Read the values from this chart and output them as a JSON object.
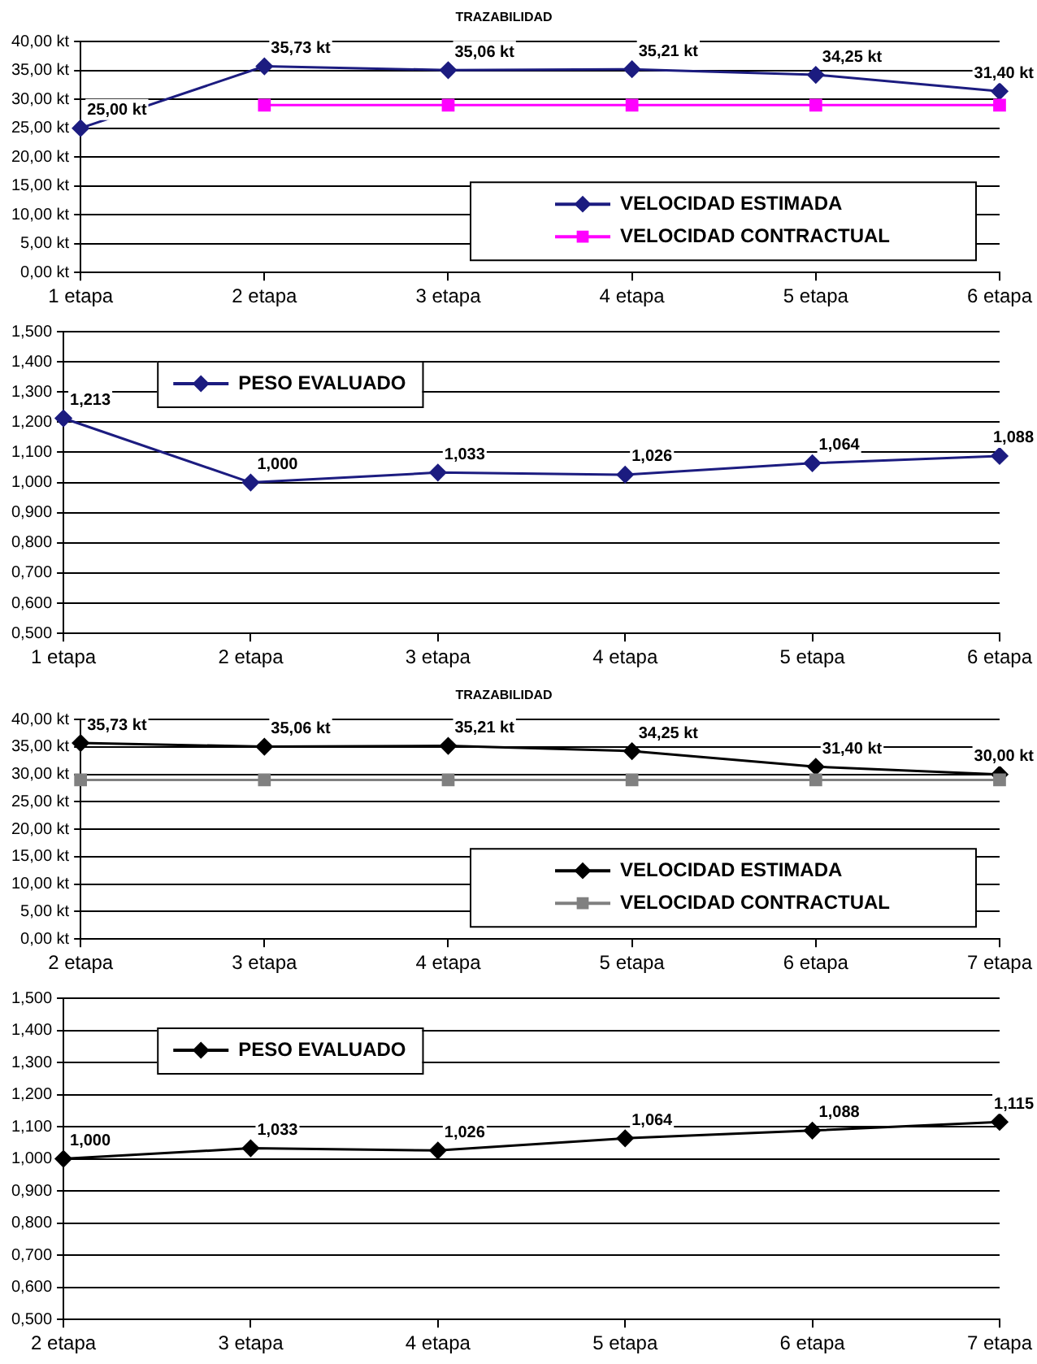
{
  "chart_data": [
    {
      "type": "line",
      "title": "TRAZABILIDAD",
      "categories": [
        "1 etapa",
        "2 etapa",
        "3 etapa",
        "4 etapa",
        "5 etapa",
        "6 etapa"
      ],
      "ylim": [
        0,
        40
      ],
      "yticks": [
        {
          "value": 0,
          "label": "0,00 kt"
        },
        {
          "value": 5,
          "label": "5,00 kt"
        },
        {
          "value": 10,
          "label": "10,00 kt"
        },
        {
          "value": 15,
          "label": "15,00 kt"
        },
        {
          "value": 20,
          "label": "20,00 kt"
        },
        {
          "value": 25,
          "label": "25,00 kt"
        },
        {
          "value": 30,
          "label": "30,00 kt"
        },
        {
          "value": 35,
          "label": "35,00 kt"
        },
        {
          "value": 40,
          "label": "40,00 kt"
        }
      ],
      "grid": "y",
      "legend": "bottom right",
      "series": [
        {
          "name": "VELOCIDAD ESTIMADA",
          "color": "#1c1c80",
          "marker": "diamond",
          "values": [
            25.0,
            35.73,
            35.06,
            35.21,
            34.25,
            31.4
          ],
          "value_labels": [
            "25,00 kt",
            "35,73 kt",
            "35,06 kt",
            "35,21 kt",
            "34,25 kt",
            "31,40 kt"
          ]
        },
        {
          "name": "VELOCIDAD CONTRACTUAL",
          "color": "#ff00ff",
          "marker": "square",
          "values": [
            null,
            29,
            29,
            29,
            29,
            29
          ]
        }
      ]
    },
    {
      "type": "line",
      "categories": [
        "1 etapa",
        "2 etapa",
        "3 etapa",
        "4 etapa",
        "5 etapa",
        "6 etapa"
      ],
      "ylim": [
        0.5,
        1.5
      ],
      "yticks": [
        {
          "value": 0.5,
          "label": "0,500"
        },
        {
          "value": 0.6,
          "label": "0,600"
        },
        {
          "value": 0.7,
          "label": "0,700"
        },
        {
          "value": 0.8,
          "label": "0,800"
        },
        {
          "value": 0.9,
          "label": "0,900"
        },
        {
          "value": 1.0,
          "label": "1,000"
        },
        {
          "value": 1.1,
          "label": "1,100"
        },
        {
          "value": 1.2,
          "label": "1,200"
        },
        {
          "value": 1.3,
          "label": "1,300"
        },
        {
          "value": 1.4,
          "label": "1,400"
        },
        {
          "value": 1.5,
          "label": "1,500"
        }
      ],
      "grid": "y",
      "legend": "top left",
      "series": [
        {
          "name": "PESO EVALUADO",
          "color": "#1c1c80",
          "marker": "diamond",
          "values": [
            1.213,
            1.0,
            1.033,
            1.026,
            1.064,
            1.088
          ],
          "value_labels": [
            "1,213",
            "1,000",
            "1,033",
            "1,026",
            "1,064",
            "1,088"
          ]
        }
      ]
    },
    {
      "type": "line",
      "title": "TRAZABILIDAD",
      "categories": [
        "2 etapa",
        "3 etapa",
        "4 etapa",
        "5 etapa",
        "6 etapa",
        "7 etapa"
      ],
      "ylim": [
        0,
        40
      ],
      "yticks": [
        {
          "value": 0,
          "label": "0,00 kt"
        },
        {
          "value": 5,
          "label": "5,00 kt"
        },
        {
          "value": 10,
          "label": "10,00 kt"
        },
        {
          "value": 15,
          "label": "15,00 kt"
        },
        {
          "value": 20,
          "label": "20,00 kt"
        },
        {
          "value": 25,
          "label": "25,00 kt"
        },
        {
          "value": 30,
          "label": "30,00 kt"
        },
        {
          "value": 35,
          "label": "35,00 kt"
        },
        {
          "value": 40,
          "label": "40,00 kt"
        }
      ],
      "grid": "y",
      "legend": "bottom right",
      "series": [
        {
          "name": "VELOCIDAD ESTIMADA",
          "color": "#000000",
          "marker": "diamond",
          "values": [
            35.73,
            35.06,
            35.21,
            34.25,
            31.4,
            30.0
          ],
          "value_labels": [
            "35,73 kt",
            "35,06 kt",
            "35,21 kt",
            "34,25 kt",
            "31,40 kt",
            "30,00 kt"
          ]
        },
        {
          "name": "VELOCIDAD CONTRACTUAL",
          "color": "#808080",
          "marker": "square",
          "values": [
            29,
            29,
            29,
            29,
            29,
            29
          ]
        }
      ]
    },
    {
      "type": "line",
      "categories": [
        "2 etapa",
        "3 etapa",
        "4 etapa",
        "5 etapa",
        "6 etapa",
        "7 etapa"
      ],
      "ylim": [
        0.5,
        1.5
      ],
      "yticks": [
        {
          "value": 0.5,
          "label": "0,500"
        },
        {
          "value": 0.6,
          "label": "0,600"
        },
        {
          "value": 0.7,
          "label": "0,700"
        },
        {
          "value": 0.8,
          "label": "0,800"
        },
        {
          "value": 0.9,
          "label": "0,900"
        },
        {
          "value": 1.0,
          "label": "1,000"
        },
        {
          "value": 1.1,
          "label": "1,100"
        },
        {
          "value": 1.2,
          "label": "1,200"
        },
        {
          "value": 1.3,
          "label": "1,300"
        },
        {
          "value": 1.4,
          "label": "1,400"
        },
        {
          "value": 1.5,
          "label": "1,500"
        }
      ],
      "grid": "y",
      "legend": "top left",
      "series": [
        {
          "name": "PESO EVALUADO",
          "color": "#000000",
          "marker": "diamond",
          "values": [
            1.0,
            1.033,
            1.026,
            1.064,
            1.088,
            1.115
          ],
          "value_labels": [
            "1,000",
            "1,033",
            "1,026",
            "1,064",
            "1,088",
            "1,115"
          ]
        }
      ]
    }
  ]
}
